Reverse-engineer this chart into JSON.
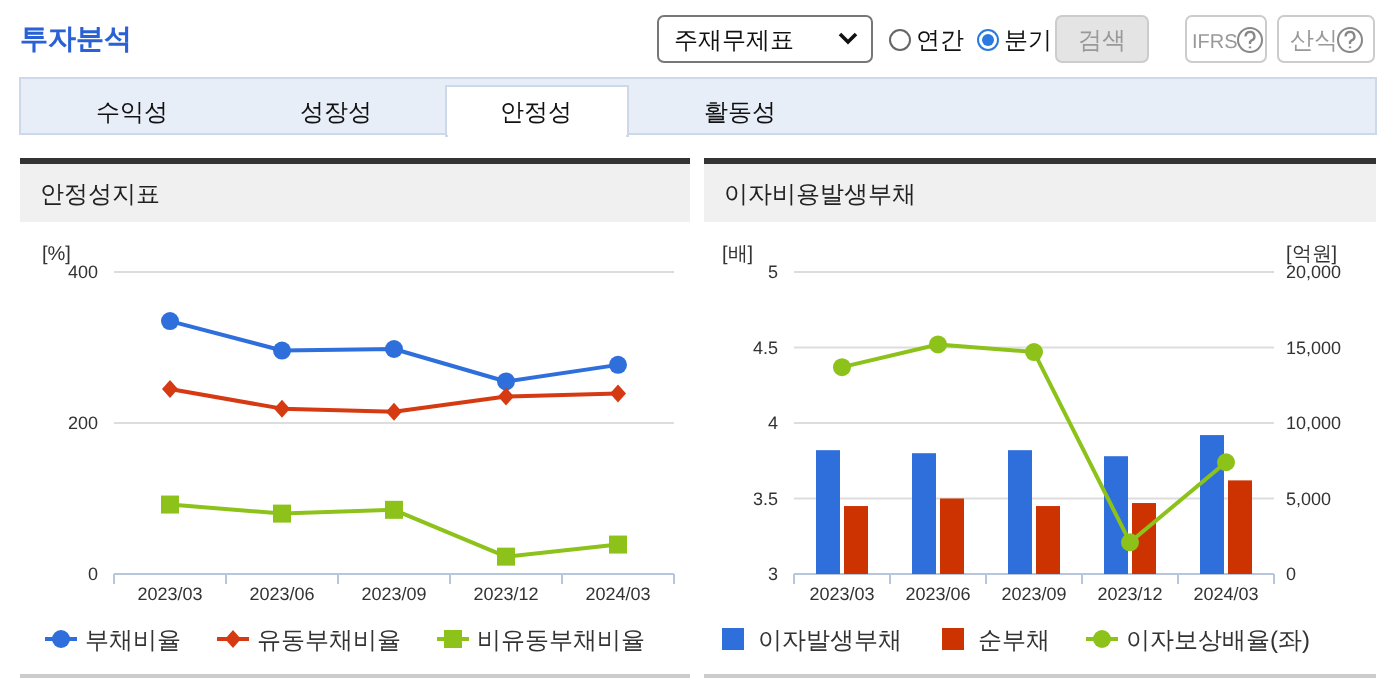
{
  "chart_data": [
    {
      "type": "other",
      "title": "투자분석",
      "annotations": [
        "주재무제표",
        "연간",
        "분기",
        "검색",
        "IFRS",
        "산식",
        "수익성",
        "성장성",
        "안정성",
        "활동성"
      ]
    },
    {
      "type": "line",
      "title": "안정성지표",
      "ylabel": "[%]",
      "categories": [
        "2023/03",
        "2023/06",
        "2023/09",
        "2023/12",
        "2024/03"
      ],
      "ylim": [
        0,
        400
      ],
      "yticks": [
        0,
        200,
        400
      ],
      "grid": "y",
      "legend": "bottom",
      "series": [
        {
          "name": "부채비율",
          "color": "#2f6fdc",
          "marker": "circle",
          "values": [
            335,
            296,
            298,
            255,
            277
          ]
        },
        {
          "name": "유동부채비율",
          "color": "#d63a12",
          "marker": "diamond",
          "values": [
            245,
            219,
            215,
            235,
            239
          ]
        },
        {
          "name": "비유동부채비율",
          "color": "#8cc21a",
          "marker": "square",
          "values": [
            92,
            80,
            85,
            23,
            39
          ]
        }
      ]
    },
    {
      "type": "bar",
      "title": "이자비용발생부채",
      "ylabel": "[배]",
      "y2label": "[억원]",
      "categories": [
        "2023/03",
        "2023/06",
        "2023/09",
        "2023/12",
        "2024/03"
      ],
      "ylim": [
        3,
        5
      ],
      "yticks": [
        3,
        3.5,
        4,
        4.5,
        5
      ],
      "y2lim": [
        0,
        20000
      ],
      "y2ticks": [
        0,
        {
          "value": 5000,
          "label": "5,000"
        },
        {
          "value": 10000,
          "label": "10,000"
        },
        {
          "value": 15000,
          "label": "15,000"
        },
        {
          "value": 20000,
          "label": "20,000"
        }
      ],
      "grid": "y",
      "legend": "bottom",
      "series": [
        {
          "name": "이자발생부채",
          "color": "#2f6fdc",
          "type": "bar",
          "axis": "y2",
          "values": [
            8200,
            8000,
            8200,
            7800,
            9200
          ]
        },
        {
          "name": "순부채",
          "color": "#cc3300",
          "type": "bar",
          "axis": "y2",
          "values": [
            4500,
            5000,
            4500,
            4700,
            6200
          ]
        },
        {
          "name": "이자보상배율(좌)",
          "color": "#8cc21a",
          "type": "line",
          "axis": "y",
          "marker": "circle",
          "values": [
            4.37,
            4.52,
            4.47,
            3.21,
            3.74
          ]
        }
      ]
    }
  ]
}
